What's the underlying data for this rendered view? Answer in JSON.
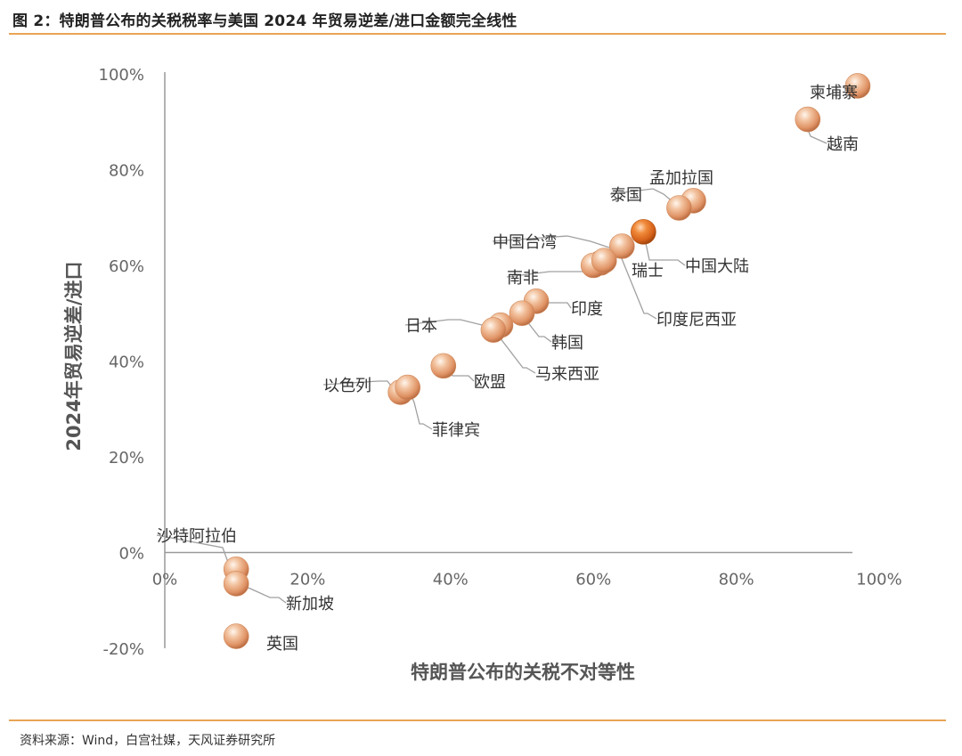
{
  "header": {
    "title": "图 2：特朗普公布的关税税率与美国 2024 年贸易逆差/进口金额完全线性"
  },
  "footer": {
    "source": "资料来源：Wind，白宫社媒，天风证券研究所"
  },
  "colors": {
    "accent_rule": "#e8a455",
    "point": "#e8a06a",
    "highlight_point": "#d9661a",
    "axis": "#9a9a9a",
    "leader": "#a0a0a0"
  },
  "chart_data": {
    "type": "scatter",
    "xlabel": "特朗普公布的关税不对等性",
    "ylabel": "2024年贸易逆差/进口",
    "xlim": [
      0,
      100
    ],
    "ylim": [
      -20,
      100
    ],
    "x_ticks": [
      "0%",
      "20%",
      "40%",
      "60%",
      "80%",
      "100%"
    ],
    "y_ticks": [
      "100%",
      "80%",
      "60%",
      "40%",
      "20%",
      "0%",
      "-20%"
    ],
    "grid": false,
    "legend": "none",
    "points": [
      {
        "label": "柬埔寨",
        "x": 97,
        "y": 97.5
      },
      {
        "label": "越南",
        "x": 90,
        "y": 90.5
      },
      {
        "label": "孟加拉国",
        "x": 74,
        "y": 73.5
      },
      {
        "label": "泰国",
        "x": 72,
        "y": 72
      },
      {
        "label": "中国大陆",
        "x": 67,
        "y": 67,
        "highlight": true
      },
      {
        "label": "中国台湾",
        "x": 64,
        "y": 64
      },
      {
        "label": "瑞士",
        "x": 61,
        "y": 60.5
      },
      {
        "label": "南非",
        "x": 60,
        "y": 60
      },
      {
        "label": "印度尼西亚",
        "x": 61.5,
        "y": 61
      },
      {
        "label": "印度",
        "x": 52,
        "y": 52.5
      },
      {
        "label": "韩国",
        "x": 50,
        "y": 50
      },
      {
        "label": "日本",
        "x": 47,
        "y": 47.5
      },
      {
        "label": "马来西亚",
        "x": 46,
        "y": 46.5
      },
      {
        "label": "欧盟",
        "x": 39,
        "y": 39
      },
      {
        "label": "以色列",
        "x": 33,
        "y": 33.5
      },
      {
        "label": "菲律宾",
        "x": 34,
        "y": 34.5
      },
      {
        "label": "沙特阿拉伯",
        "x": 10,
        "y": -3.5
      },
      {
        "label": "新加坡",
        "x": 10,
        "y": -6.5
      },
      {
        "label": "英国",
        "x": 10,
        "y": -17.5
      }
    ]
  }
}
